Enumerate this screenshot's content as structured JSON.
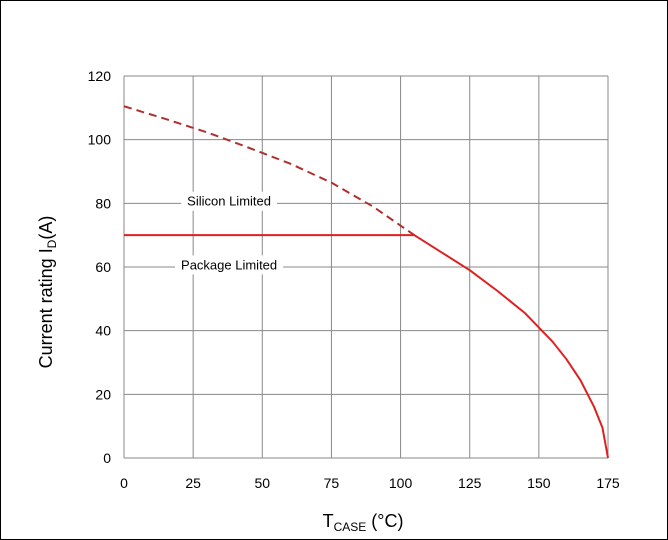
{
  "chart_data": {
    "type": "line",
    "xlabel": {
      "main": "T",
      "sub": "CASE",
      "rest": " (°C)"
    },
    "ylabel": {
      "main": "Current rating I",
      "sub": "D",
      "rest": "(A)"
    },
    "xlim": [
      0,
      175
    ],
    "ylim": [
      0,
      120
    ],
    "xticks": [
      0,
      25,
      50,
      75,
      100,
      125,
      150,
      175
    ],
    "yticks": [
      0,
      20,
      40,
      60,
      80,
      100,
      120
    ],
    "grid": true,
    "series": [
      {
        "name": "Silicon Limited",
        "style": "dashed",
        "color": "#b03030",
        "x": [
          0,
          15,
          30,
          45,
          60,
          75,
          90,
          105
        ],
        "y": [
          110.5,
          106.5,
          102.3,
          97.5,
          92.5,
          86.5,
          79,
          70
        ]
      },
      {
        "name": "Package Limited",
        "style": "solid",
        "color": "#e02020",
        "x": [
          0,
          105,
          115,
          125,
          135,
          145,
          155,
          160,
          165,
          170,
          173,
          175
        ],
        "y": [
          70,
          70,
          64.5,
          59,
          52.5,
          45.5,
          36.5,
          31,
          24.5,
          16,
          9.5,
          0
        ]
      }
    ],
    "annotations": [
      {
        "text": "Silicon Limited",
        "x": 38,
        "y": 80.5
      },
      {
        "text": "Package Limited",
        "x": 38,
        "y": 60.5
      }
    ]
  }
}
